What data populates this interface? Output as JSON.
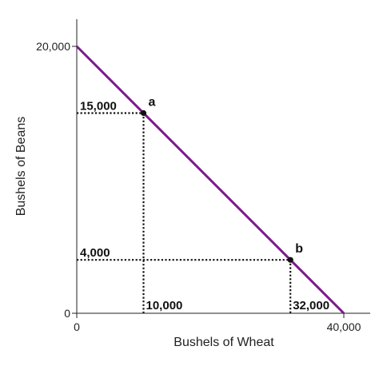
{
  "chart_data": {
    "type": "line",
    "xlabel": "Bushels of Wheat",
    "ylabel": "Bushels of Beans",
    "xlim": [
      0,
      40000
    ],
    "ylim": [
      0,
      20000
    ],
    "x_ticks": [
      {
        "value": 0,
        "label": "0"
      },
      {
        "value": 40000,
        "label": "40,000"
      }
    ],
    "y_ticks": [
      {
        "value": 0,
        "label": "0"
      },
      {
        "value": 20000,
        "label": "20,000"
      }
    ],
    "series": [
      {
        "color": "#7b1a8c",
        "points": [
          {
            "x": 0,
            "y": 20000
          },
          {
            "x": 40000,
            "y": 0
          }
        ]
      }
    ],
    "highlighted_points": [
      {
        "label": "a",
        "x": 10000,
        "y": 15000
      },
      {
        "label": "b",
        "x": 32000,
        "y": 4000
      }
    ],
    "guide_labels": [
      {
        "axis": "y",
        "value": 15000,
        "label": "15,000"
      },
      {
        "axis": "y",
        "value": 4000,
        "label": "4,000"
      },
      {
        "axis": "x",
        "value": 10000,
        "label": "10,000"
      },
      {
        "axis": "x",
        "value": 32000,
        "label": "32,000"
      }
    ],
    "grid": false,
    "legend": "none"
  },
  "colors": {
    "line": "#7b1a8c",
    "axis": "#222222",
    "guide": "#111111",
    "point": "#111111"
  }
}
